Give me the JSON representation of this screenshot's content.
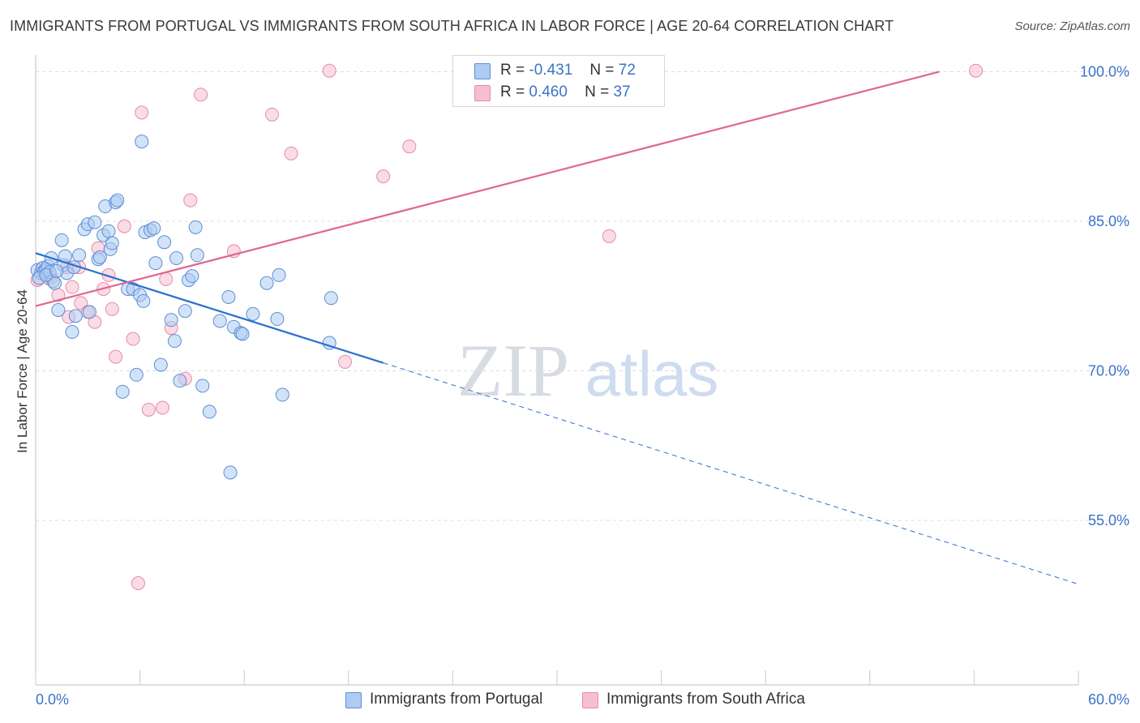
{
  "title": "IMMIGRANTS FROM PORTUGAL VS IMMIGRANTS FROM SOUTH AFRICA IN LABOR FORCE | AGE 20-64 CORRELATION CHART",
  "source": "Source: ZipAtlas.com",
  "watermark": {
    "zip": "ZIP",
    "atlas": "atlas"
  },
  "legend": {
    "r_label": "R =",
    "n_label": "N =",
    "series": [
      {
        "r": "-0.431",
        "n": "72"
      },
      {
        "r": "0.460",
        "n": "37"
      }
    ]
  },
  "colors": {
    "blue_fill": "#aeccf1",
    "blue_stroke": "#5a8fd8",
    "blue_line": "#2a6fd0",
    "pink_fill": "#f6bfd0",
    "pink_stroke": "#e889a8",
    "pink_line": "#e06690",
    "axis_label": "#3b73c8",
    "grid": "#dddddd"
  },
  "chart_data": {
    "type": "scatter",
    "title": "IMMIGRANTS FROM PORTUGAL VS IMMIGRANTS FROM SOUTH AFRICA IN LABOR FORCE | AGE 20-64 CORRELATION CHART",
    "xlabel": "",
    "ylabel": "In Labor Force | Age 20-64",
    "xlim": [
      0,
      60
    ],
    "ylim": [
      38.5,
      101.5
    ],
    "x_tick_labels": [
      "0.0%",
      "60.0%"
    ],
    "y_ticks": [
      55,
      70,
      85,
      100
    ],
    "y_tick_labels": [
      "55.0%",
      "70.0%",
      "85.0%",
      "100.0%"
    ],
    "grid": true,
    "series": [
      {
        "name": "Immigrants from Portugal",
        "color": "blue",
        "trend": {
          "x": [
            0,
            20
          ],
          "y": [
            81.8,
            70.8
          ],
          "dashed_to": {
            "x": 60,
            "y": 48.6
          }
        },
        "points": [
          [
            0.1,
            80.1
          ],
          [
            0.3,
            79.8
          ],
          [
            0.4,
            80.3
          ],
          [
            0.5,
            80.0
          ],
          [
            0.6,
            80.2
          ],
          [
            0.7,
            80.5
          ],
          [
            0.8,
            79.9
          ],
          [
            0.9,
            81.3
          ],
          [
            1.0,
            79.0
          ],
          [
            1.1,
            78.8
          ],
          [
            1.3,
            76.1
          ],
          [
            1.5,
            83.1
          ],
          [
            1.6,
            80.6
          ],
          [
            1.7,
            81.5
          ],
          [
            1.8,
            79.8
          ],
          [
            2.1,
            73.9
          ],
          [
            2.2,
            80.4
          ],
          [
            2.3,
            75.5
          ],
          [
            2.5,
            81.6
          ],
          [
            2.8,
            84.2
          ],
          [
            3.0,
            84.7
          ],
          [
            3.1,
            75.9
          ],
          [
            3.4,
            84.9
          ],
          [
            3.6,
            81.2
          ],
          [
            3.7,
            81.4
          ],
          [
            3.9,
            83.6
          ],
          [
            4.0,
            86.5
          ],
          [
            4.2,
            84.0
          ],
          [
            4.3,
            82.2
          ],
          [
            4.4,
            82.8
          ],
          [
            4.6,
            86.9
          ],
          [
            4.7,
            87.1
          ],
          [
            5.0,
            67.9
          ],
          [
            5.3,
            78.2
          ],
          [
            5.6,
            78.2
          ],
          [
            5.8,
            69.6
          ],
          [
            6.0,
            77.6
          ],
          [
            6.1,
            93.0
          ],
          [
            6.2,
            77.0
          ],
          [
            6.3,
            83.9
          ],
          [
            6.6,
            84.1
          ],
          [
            6.8,
            84.3
          ],
          [
            6.9,
            80.8
          ],
          [
            7.2,
            70.6
          ],
          [
            7.4,
            82.9
          ],
          [
            7.8,
            75.1
          ],
          [
            8.0,
            73.0
          ],
          [
            8.1,
            81.3
          ],
          [
            8.3,
            69.0
          ],
          [
            8.6,
            76.0
          ],
          [
            8.8,
            79.1
          ],
          [
            9.0,
            79.5
          ],
          [
            9.2,
            84.4
          ],
          [
            9.3,
            81.6
          ],
          [
            9.6,
            68.5
          ],
          [
            10.0,
            65.9
          ],
          [
            10.6,
            75.0
          ],
          [
            11.1,
            77.4
          ],
          [
            11.2,
            59.8
          ],
          [
            11.4,
            74.4
          ],
          [
            11.8,
            73.8
          ],
          [
            11.9,
            73.7
          ],
          [
            12.5,
            75.7
          ],
          [
            13.3,
            78.8
          ],
          [
            13.9,
            75.2
          ],
          [
            14.0,
            79.6
          ],
          [
            14.2,
            67.6
          ],
          [
            16.9,
            72.8
          ],
          [
            17.0,
            77.3
          ],
          [
            0.2,
            79.3
          ],
          [
            0.6,
            79.6
          ],
          [
            1.2,
            80.0
          ]
        ]
      },
      {
        "name": "Immigrants from South Africa",
        "color": "pink",
        "trend": {
          "x": [
            0,
            52.0
          ],
          "y": [
            76.5,
            100.0
          ]
        },
        "points": [
          [
            0.1,
            79.1
          ],
          [
            0.4,
            80.3
          ],
          [
            0.7,
            79.3
          ],
          [
            0.9,
            79.4
          ],
          [
            1.3,
            77.6
          ],
          [
            1.8,
            80.4
          ],
          [
            1.9,
            75.4
          ],
          [
            2.1,
            78.4
          ],
          [
            2.5,
            80.4
          ],
          [
            2.6,
            76.8
          ],
          [
            3.0,
            75.9
          ],
          [
            3.4,
            74.9
          ],
          [
            3.6,
            82.3
          ],
          [
            3.9,
            78.2
          ],
          [
            4.2,
            79.6
          ],
          [
            4.4,
            76.2
          ],
          [
            4.6,
            71.4
          ],
          [
            5.1,
            84.5
          ],
          [
            5.6,
            73.2
          ],
          [
            5.9,
            48.7
          ],
          [
            6.1,
            95.9
          ],
          [
            6.5,
            66.1
          ],
          [
            7.3,
            66.3
          ],
          [
            7.5,
            79.2
          ],
          [
            7.8,
            74.3
          ],
          [
            8.6,
            69.2
          ],
          [
            8.9,
            87.1
          ],
          [
            9.5,
            97.7
          ],
          [
            11.4,
            82.0
          ],
          [
            13.6,
            95.7
          ],
          [
            14.7,
            91.8
          ],
          [
            16.9,
            100.1
          ],
          [
            17.8,
            70.9
          ],
          [
            20.0,
            89.5
          ],
          [
            21.5,
            92.5
          ],
          [
            33.0,
            83.5
          ],
          [
            54.1,
            100.1
          ]
        ]
      }
    ]
  },
  "bottom_legend": [
    "Immigrants from Portugal",
    "Immigrants from South Africa"
  ]
}
